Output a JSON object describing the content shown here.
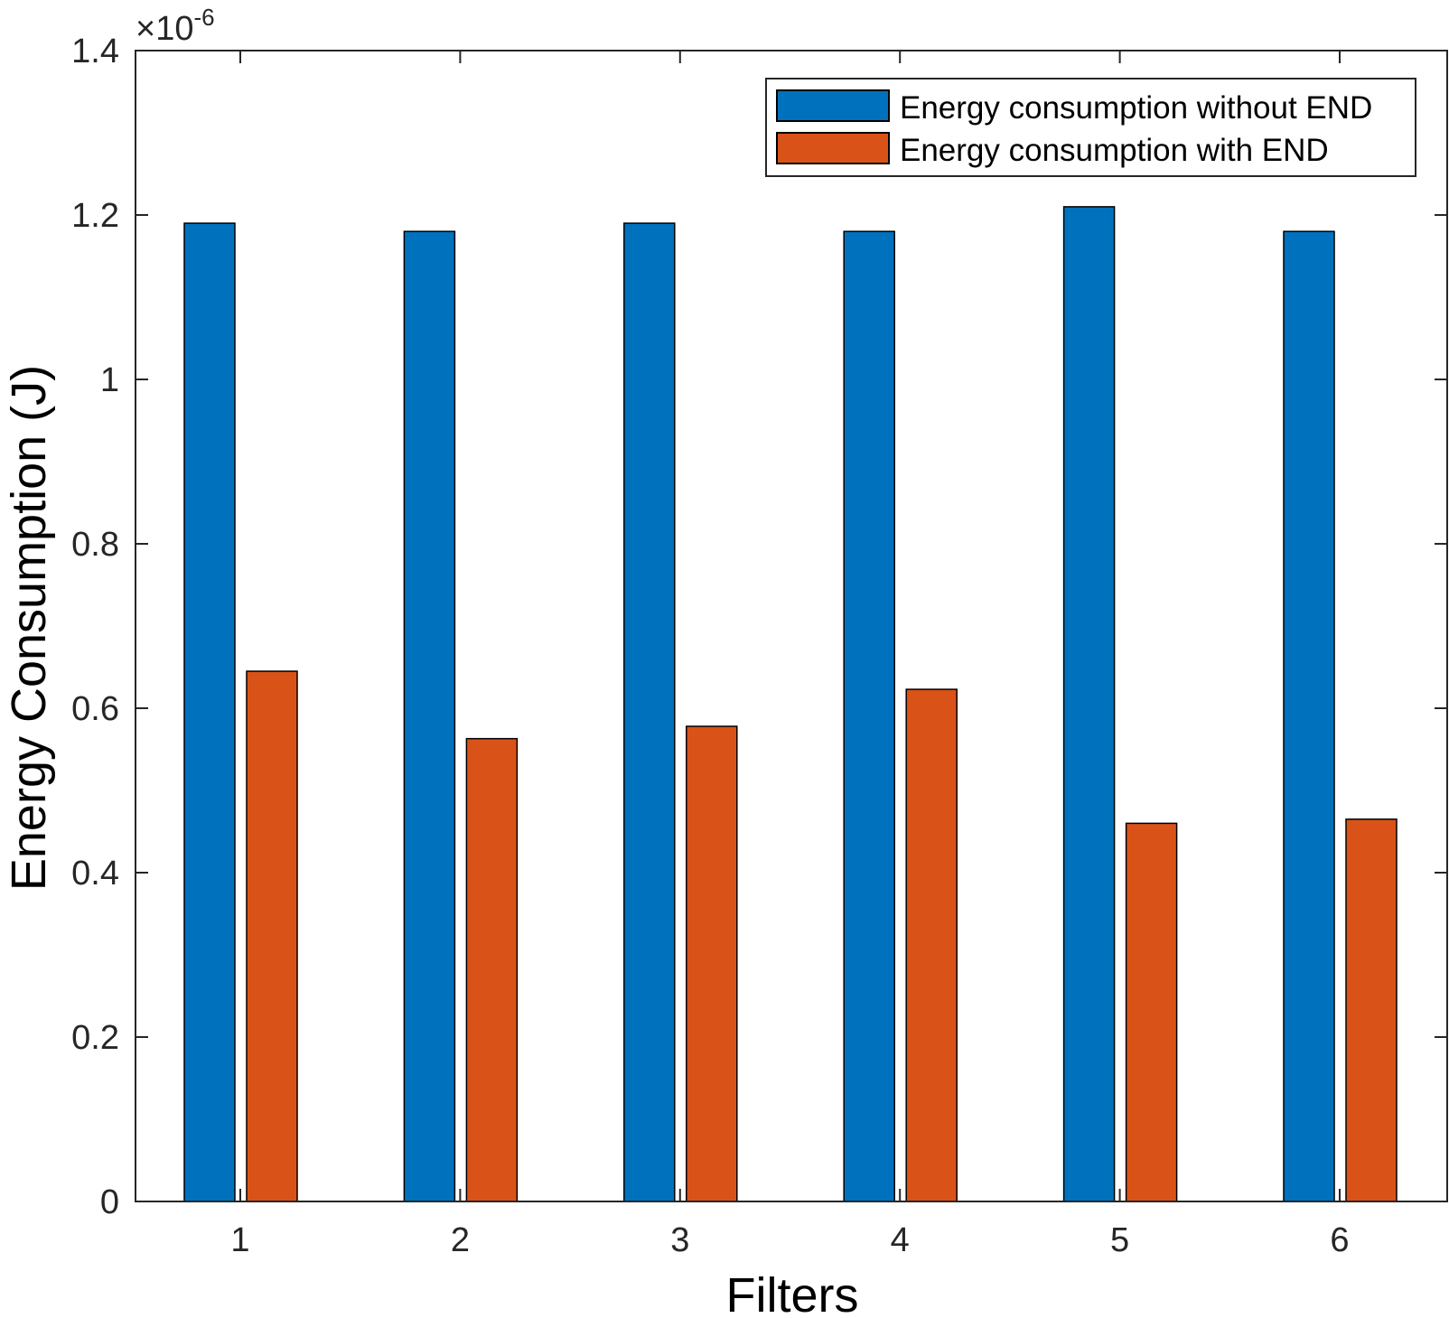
{
  "chart_data": {
    "type": "bar",
    "categories": [
      "1",
      "2",
      "3",
      "4",
      "5",
      "6"
    ],
    "series": [
      {
        "name": "Energy consumption without END",
        "color": "#0072BD",
        "values": [
          1.19,
          1.18,
          1.19,
          1.18,
          1.21,
          1.18
        ]
      },
      {
        "name": "Energy consumption with END",
        "color": "#D95319",
        "values": [
          0.645,
          0.563,
          0.578,
          0.623,
          0.46,
          0.465
        ]
      }
    ],
    "xlabel": "Filters",
    "ylabel": "Energy Consumption (J)",
    "ylim": [
      0,
      1.4
    ],
    "yticks": [
      0,
      0.2,
      0.4,
      0.6,
      0.8,
      1,
      1.2,
      1.4
    ],
    "ytick_labels": [
      "0",
      "0.2",
      "0.4",
      "0.6",
      "0.8",
      "1",
      "1.2",
      "1.4"
    ],
    "y_exponent": {
      "base": "×10",
      "power": "-6"
    },
    "legend_position": "top-right",
    "grid": false
  }
}
